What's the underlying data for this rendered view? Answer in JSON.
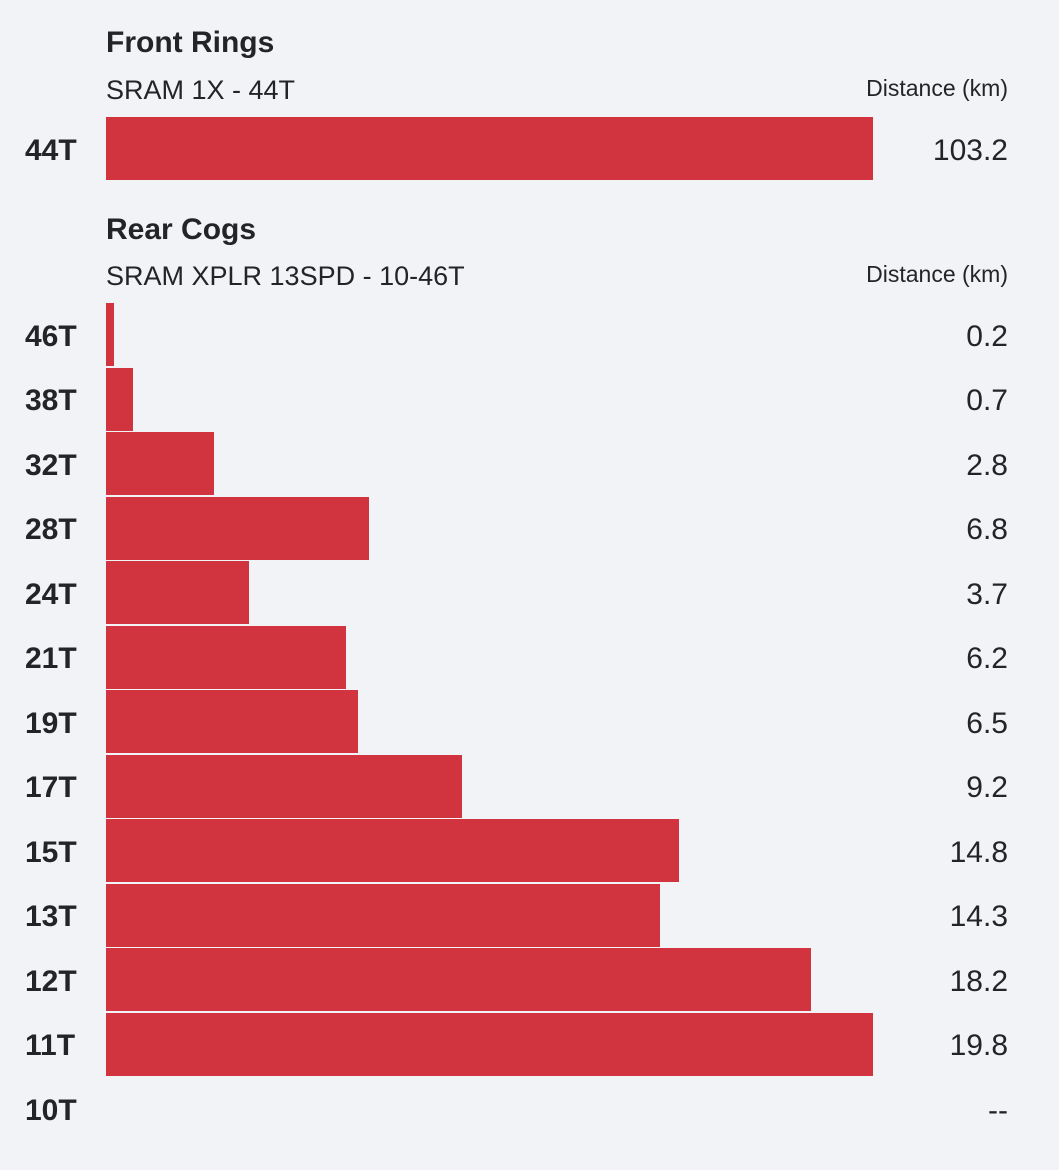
{
  "theme": {
    "bar_color": "#d2343f",
    "background": "#f2f3f6",
    "text_color": "#222427"
  },
  "front": {
    "title": "Front Rings",
    "subtitle": "SRAM 1X - 44T",
    "column_header": "Distance (km)"
  },
  "rear": {
    "title": "Rear Cogs",
    "subtitle": "SRAM XPLR 13SPD - 10-46T",
    "column_header": "Distance (km)"
  },
  "chart_data": [
    {
      "type": "bar",
      "orientation": "horizontal",
      "title": "Front Rings",
      "subtitle": "SRAM 1X - 44T",
      "ylabel": "Distance (km)",
      "categories": [
        "44T"
      ],
      "values": [
        103.2
      ],
      "value_labels": [
        "103.2"
      ]
    },
    {
      "type": "bar",
      "orientation": "horizontal",
      "title": "Rear Cogs",
      "subtitle": "SRAM XPLR 13SPD - 10-46T",
      "ylabel": "Distance (km)",
      "categories": [
        "46T",
        "38T",
        "32T",
        "28T",
        "24T",
        "21T",
        "19T",
        "17T",
        "15T",
        "13T",
        "12T",
        "11T",
        "10T"
      ],
      "values": [
        0.2,
        0.7,
        2.8,
        6.8,
        3.7,
        6.2,
        6.5,
        9.2,
        14.8,
        14.3,
        18.2,
        19.8,
        null
      ],
      "value_labels": [
        "0.2",
        "0.7",
        "2.8",
        "6.8",
        "3.7",
        "6.2",
        "6.5",
        "9.2",
        "14.8",
        "14.3",
        "18.2",
        "19.8",
        "--"
      ]
    }
  ]
}
